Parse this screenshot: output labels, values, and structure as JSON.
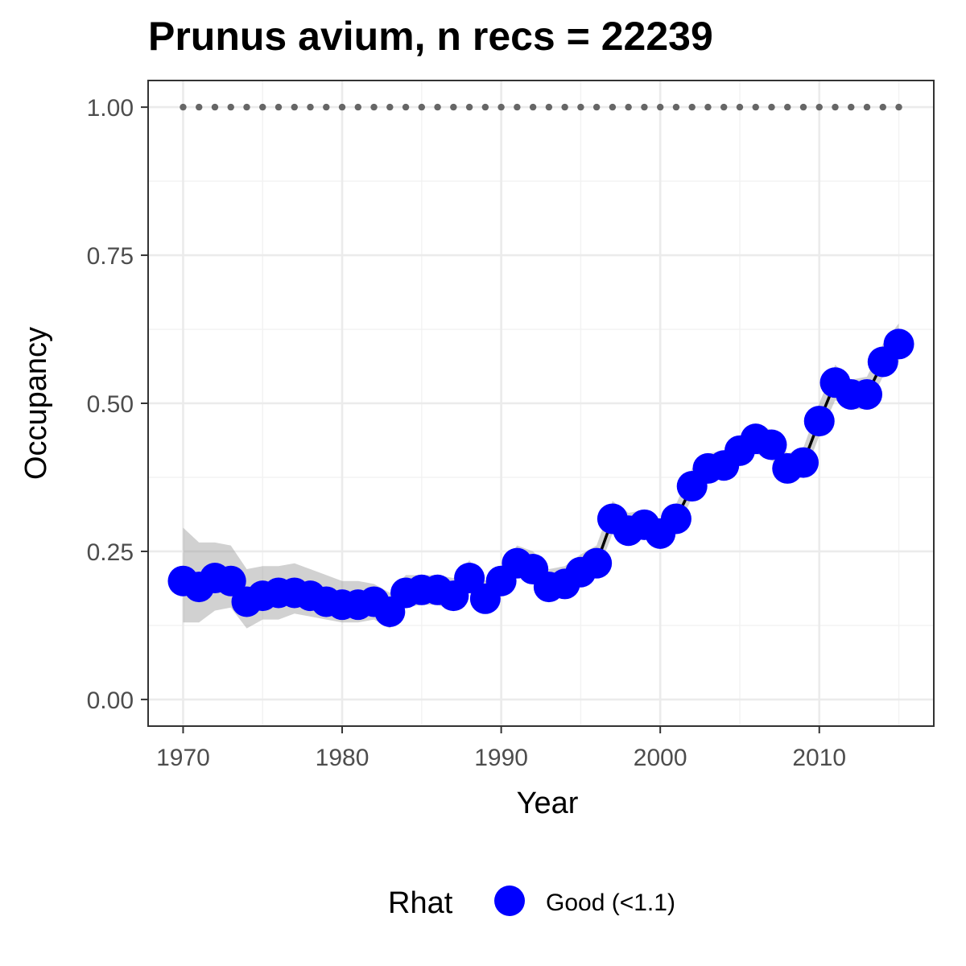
{
  "chart_data": {
    "type": "line",
    "title": "Prunus avium, n recs = 22239",
    "xlabel": "Year",
    "ylabel": "Occupancy",
    "xlim": [
      1967.8,
      2017.2
    ],
    "ylim": [
      -0.045,
      1.045
    ],
    "x_ticks": [
      1970,
      1980,
      1990,
      2000,
      2010
    ],
    "x_tick_labels": [
      "1970",
      "1980",
      "1990",
      "2000",
      "2010"
    ],
    "y_ticks": [
      0,
      0.25,
      0.5,
      0.75,
      1.0
    ],
    "y_tick_labels": [
      "0.00",
      "0.25",
      "0.50",
      "0.75",
      "1.00"
    ],
    "grid": true,
    "reference_line": {
      "y": 1.0,
      "style": "dotted",
      "color": "#666666"
    },
    "x": [
      1970,
      1971,
      1972,
      1973,
      1974,
      1975,
      1976,
      1977,
      1978,
      1979,
      1980,
      1981,
      1982,
      1983,
      1984,
      1985,
      1986,
      1987,
      1988,
      1989,
      1990,
      1991,
      1992,
      1993,
      1994,
      1995,
      1996,
      1997,
      1998,
      1999,
      2000,
      2001,
      2002,
      2003,
      2004,
      2005,
      2006,
      2007,
      2008,
      2009,
      2010,
      2011,
      2012,
      2013,
      2014,
      2015
    ],
    "series": [
      {
        "values": [
          0.2,
          0.19,
          0.205,
          0.2,
          0.165,
          0.175,
          0.18,
          0.18,
          0.175,
          0.165,
          0.16,
          0.16,
          0.165,
          0.148,
          0.18,
          0.185,
          0.185,
          0.175,
          0.205,
          0.17,
          0.2,
          0.23,
          0.22,
          0.19,
          0.195,
          0.215,
          0.23,
          0.305,
          0.285,
          0.295,
          0.28,
          0.305,
          0.36,
          0.39,
          0.395,
          0.42,
          0.44,
          0.43,
          0.39,
          0.4,
          0.47,
          0.535,
          0.515,
          0.515,
          0.57,
          0.6
        ],
        "lower": [
          0.13,
          0.13,
          0.15,
          0.155,
          0.12,
          0.135,
          0.135,
          0.145,
          0.14,
          0.135,
          0.13,
          0.13,
          0.135,
          0.12,
          0.155,
          0.16,
          0.16,
          0.15,
          0.18,
          0.15,
          0.18,
          0.21,
          0.2,
          0.165,
          0.175,
          0.195,
          0.21,
          0.28,
          0.265,
          0.275,
          0.26,
          0.285,
          0.34,
          0.365,
          0.375,
          0.4,
          0.415,
          0.405,
          0.37,
          0.375,
          0.445,
          0.505,
          0.49,
          0.49,
          0.545,
          0.57
        ],
        "upper": [
          0.29,
          0.265,
          0.265,
          0.26,
          0.22,
          0.225,
          0.225,
          0.23,
          0.22,
          0.21,
          0.2,
          0.2,
          0.195,
          0.18,
          0.21,
          0.21,
          0.21,
          0.205,
          0.235,
          0.2,
          0.225,
          0.26,
          0.25,
          0.22,
          0.225,
          0.245,
          0.26,
          0.335,
          0.315,
          0.32,
          0.305,
          0.33,
          0.39,
          0.415,
          0.42,
          0.445,
          0.465,
          0.455,
          0.415,
          0.425,
          0.5,
          0.565,
          0.54,
          0.545,
          0.6,
          0.635
        ],
        "point_color": "#0000FF",
        "line_color": "#000000",
        "ribbon_color": "#999999"
      }
    ],
    "legend": {
      "position": "bottom",
      "title": "Rhat",
      "entries": [
        {
          "label": "Good (<1.1)",
          "color": "#0000FF"
        }
      ]
    }
  }
}
